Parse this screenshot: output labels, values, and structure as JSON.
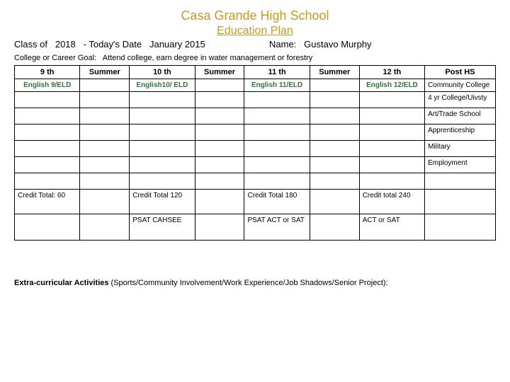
{
  "header": {
    "title": "Casa Grande High School",
    "subtitle": "Education Plan",
    "class_of_label": "Class of",
    "class_of_value": "2018",
    "date_label": "- Today's Date",
    "date_value": "January 2015",
    "name_label": "Name:",
    "name_value": "Gustavo Murphy",
    "goal_label": "College or Career Goal:",
    "goal_value": "Attend college, earn degree in water management or forestry"
  },
  "columns": {
    "c1": "9 th",
    "c2": "Summer",
    "c3": "10 th",
    "c4": "Summer",
    "c5": "11 th",
    "c6": "Summer",
    "c7": "12 th",
    "c8": "Post HS"
  },
  "english": {
    "e9": "English 9/ELD",
    "e10": "English10/ ELD",
    "e11": "English 11/ELD",
    "e12": "English 12/ELD"
  },
  "post_hs": {
    "p1": "Community College",
    "p2": "4 yr College/Uivsty",
    "p3": "Art/Trade School",
    "p4": "Apprenticeship",
    "p5": "Military",
    "p6": "Employment"
  },
  "credits": {
    "c9": "Credit Total: 60",
    "c10": "Credit Total 120",
    "c11": "Credit Total 180",
    "c12": "Credit total 240"
  },
  "tests": {
    "t10": "PSAT CAHSEE",
    "t11": "PSAT ACT or SAT",
    "t12": "ACT or SAT"
  },
  "footer": {
    "extra_bold": "Extra-curricular Activities",
    "extra_rest": " (Sports/Community Involvement/Work Experience/Job Shadows/Senior Project):"
  }
}
